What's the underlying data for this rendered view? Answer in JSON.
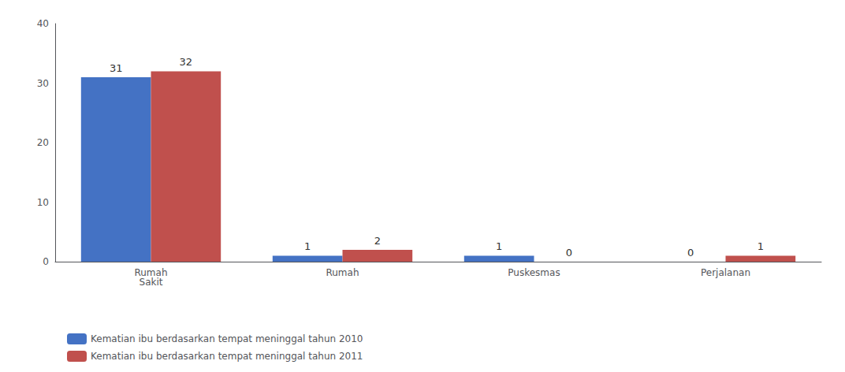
{
  "chart_data": {
    "type": "bar",
    "categories": [
      "Rumah\nSakit",
      "Rumah",
      "Puskesmas",
      "Perjalanan"
    ],
    "series": [
      {
        "name": "Kematian ibu berdasarkan tempat meninggal tahun 2010",
        "color": "#4472c4",
        "values": [
          31,
          1,
          1,
          0
        ]
      },
      {
        "name": "Kematian ibu berdasarkan tempat meninggal tahun 2011",
        "color": "#c0504d",
        "values": [
          32,
          2,
          0,
          1
        ]
      }
    ],
    "ylim": [
      0,
      40
    ],
    "yticks": [
      0,
      10,
      20,
      30,
      40
    ],
    "grid": false,
    "legend": "bottom",
    "data_labels": true
  }
}
